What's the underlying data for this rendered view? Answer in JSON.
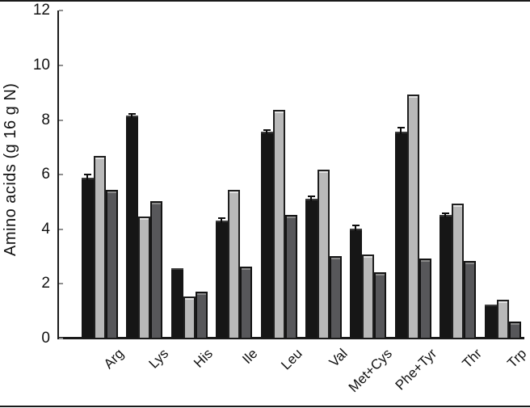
{
  "figure": {
    "background": "#ffffff",
    "border_rule_color": "#1a1a1a"
  },
  "chart_data": {
    "type": "bar",
    "title": "",
    "xlabel": "",
    "ylabel": "Amino acids (g 16 g N)",
    "ylim": [
      0,
      12
    ],
    "yticks": [
      0,
      2,
      4,
      6,
      8,
      10,
      12
    ],
    "grid": false,
    "legend": "none",
    "bar_colors": [
      "#161616",
      "#b9b9b9",
      "#57575a"
    ],
    "categories": [
      "Arg",
      "Lys",
      "His",
      "Ile",
      "Leu",
      "Val",
      "Met+Cys",
      "Phe+Tyr",
      "Thr",
      "Trp"
    ],
    "series": [
      {
        "name": "series-black",
        "color": "#161616",
        "values": [
          5.85,
          8.15,
          2.55,
          4.3,
          7.55,
          5.1,
          4.0,
          7.55,
          4.5,
          1.2
        ],
        "errors": [
          0.15,
          0.1,
          0,
          0.12,
          0.08,
          0.12,
          0.15,
          0.18,
          0.1,
          0
        ]
      },
      {
        "name": "series-light-gray",
        "color": "#b9b9b9",
        "values": [
          6.65,
          4.45,
          1.5,
          5.4,
          8.35,
          6.15,
          3.05,
          8.9,
          4.9,
          1.4
        ],
        "errors": [
          0,
          0,
          0,
          0,
          0,
          0,
          0,
          0,
          0,
          0
        ]
      },
      {
        "name": "series-dark-gray",
        "color": "#57575a",
        "values": [
          5.4,
          5.0,
          1.7,
          2.6,
          4.5,
          3.0,
          2.4,
          2.9,
          2.8,
          0.6
        ],
        "errors": [
          0,
          0,
          0,
          0,
          0,
          0,
          0,
          0,
          0,
          0
        ]
      }
    ]
  }
}
